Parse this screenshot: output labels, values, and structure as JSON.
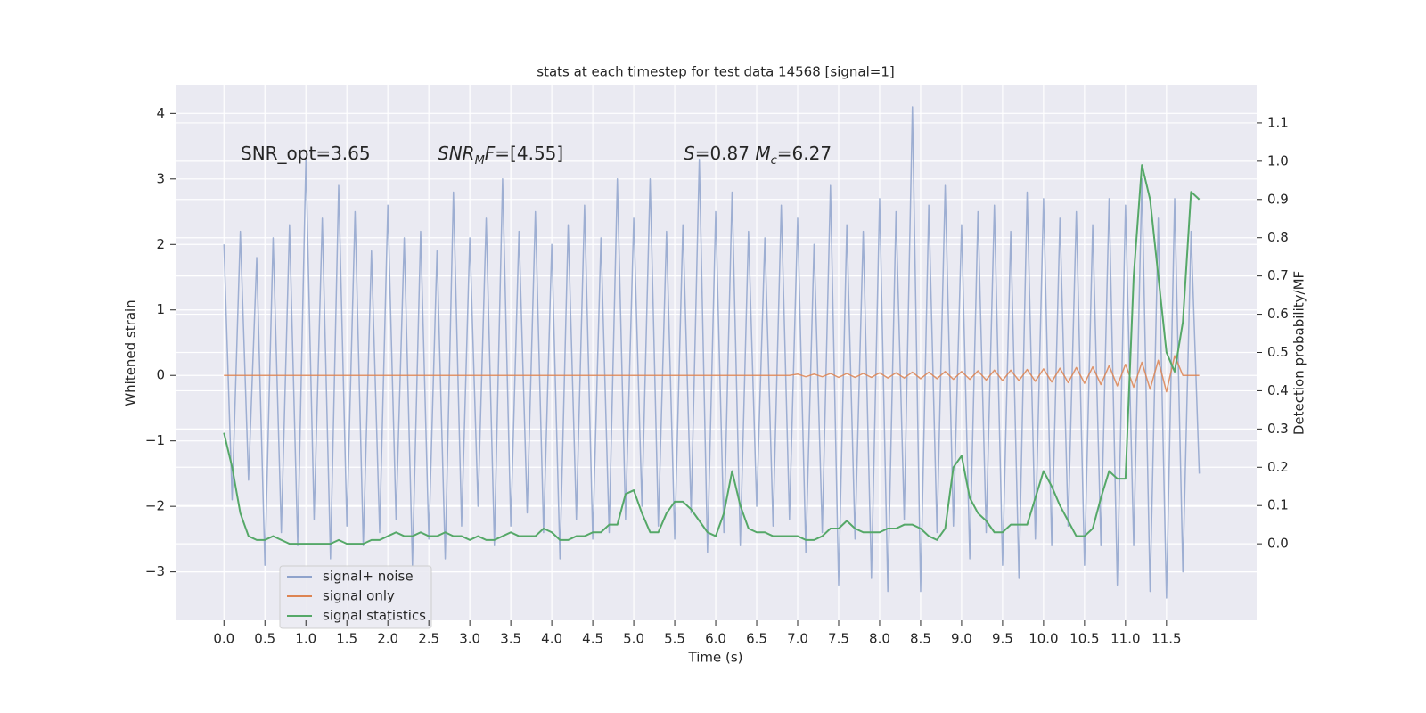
{
  "chart_data": {
    "type": "line",
    "title": "stats at each timestep for test data 14568 [signal=1]",
    "x_label": "Time (s)",
    "y_label": "Whitened strain",
    "y2_label": "Detection probability/MF",
    "annotations": [
      [
        {
          "text": "SNR_opt=3.65"
        }
      ],
      [
        {
          "text": "SNR",
          "italic": true
        },
        {
          "text": "M",
          "italic": true,
          "sub": true
        },
        {
          "text": "F",
          "italic": true
        },
        {
          "text": "=[4.55]"
        }
      ],
      [
        {
          "text": "S",
          "italic": true
        },
        {
          "text": "=0.87   "
        },
        {
          "text": "M",
          "italic": true
        },
        {
          "text": "c",
          "italic": true,
          "sub": true
        },
        {
          "text": "=6.27"
        }
      ]
    ],
    "x": [
      0.0,
      0.1,
      0.2,
      0.3,
      0.4,
      0.5,
      0.6,
      0.7,
      0.8,
      0.9,
      1.0,
      1.1,
      1.2,
      1.3,
      1.4,
      1.5,
      1.6,
      1.7,
      1.8,
      1.9,
      2.0,
      2.1,
      2.2,
      2.3,
      2.4,
      2.5,
      2.6,
      2.7,
      2.8,
      2.9,
      3.0,
      3.1,
      3.2,
      3.3,
      3.4,
      3.5,
      3.6,
      3.7,
      3.8,
      3.9,
      4.0,
      4.1,
      4.2,
      4.3,
      4.4,
      4.5,
      4.6,
      4.7,
      4.8,
      4.9,
      5.0,
      5.1,
      5.2,
      5.3,
      5.4,
      5.5,
      5.6,
      5.7,
      5.8,
      5.9,
      6.0,
      6.1,
      6.2,
      6.3,
      6.4,
      6.5,
      6.6,
      6.7,
      6.8,
      6.9,
      7.0,
      7.1,
      7.2,
      7.3,
      7.4,
      7.5,
      7.6,
      7.7,
      7.8,
      7.9,
      8.0,
      8.1,
      8.2,
      8.3,
      8.4,
      8.5,
      8.6,
      8.7,
      8.8,
      8.9,
      9.0,
      9.1,
      9.2,
      9.3,
      9.4,
      9.5,
      9.6,
      9.7,
      9.8,
      9.9,
      10.0,
      10.1,
      10.2,
      10.3,
      10.4,
      10.5,
      10.6,
      10.7,
      10.8,
      10.9,
      11.0,
      11.1,
      11.2,
      11.3,
      11.4,
      11.5,
      11.6,
      11.7,
      11.8,
      11.9
    ],
    "series": [
      {
        "name": "signal+ noise",
        "color": "#8fa3cc",
        "values": [
          2.0,
          -1.9,
          2.2,
          -1.6,
          1.8,
          -2.9,
          2.1,
          -2.4,
          2.3,
          -2.6,
          3.3,
          -2.2,
          2.4,
          -2.8,
          2.9,
          -2.3,
          2.5,
          -2.6,
          1.9,
          -2.4,
          2.6,
          -2.2,
          2.1,
          -2.9,
          2.2,
          -2.5,
          1.9,
          -2.8,
          2.8,
          -2.3,
          2.1,
          -2.0,
          2.4,
          -2.6,
          3.0,
          -2.3,
          2.2,
          -2.1,
          2.5,
          -2.4,
          2.0,
          -2.8,
          2.3,
          -2.2,
          2.6,
          -2.5,
          2.1,
          -2.4,
          3.0,
          -2.2,
          2.4,
          -2.0,
          3.0,
          -2.3,
          2.2,
          -2.5,
          2.3,
          -2.1,
          3.3,
          -2.7,
          2.5,
          -2.4,
          2.8,
          -2.6,
          2.2,
          -2.0,
          2.1,
          -2.3,
          2.6,
          -2.2,
          2.4,
          -2.7,
          2.0,
          -2.4,
          2.9,
          -3.2,
          2.3,
          -2.5,
          2.2,
          -3.1,
          2.7,
          -3.3,
          2.5,
          -2.2,
          4.1,
          -3.3,
          2.6,
          -2.4,
          2.9,
          -2.3,
          2.3,
          -2.8,
          2.5,
          -2.4,
          2.6,
          -2.9,
          2.2,
          -3.1,
          2.8,
          -2.5,
          2.7,
          -2.6,
          2.4,
          -2.3,
          2.5,
          -2.9,
          2.3,
          -2.6,
          2.7,
          -3.2,
          2.6,
          -2.6,
          3.0,
          -3.3,
          2.4,
          -3.4,
          2.7,
          -3.0,
          2.2,
          -1.5
        ]
      },
      {
        "name": "signal only",
        "color": "#dd8452",
        "values": [
          0,
          0,
          0,
          0,
          0,
          0,
          0,
          0,
          0,
          0,
          0,
          0,
          0,
          0,
          0,
          0,
          0,
          0,
          0,
          0,
          0,
          0,
          0,
          0,
          0,
          0,
          0,
          0,
          0,
          0,
          0,
          0,
          0,
          0,
          0,
          0,
          0,
          0,
          0,
          0,
          0,
          0,
          0,
          0,
          0,
          0,
          0,
          0,
          0,
          0,
          0,
          0,
          0,
          0,
          0,
          0,
          0,
          0,
          0,
          0,
          0,
          0,
          0,
          0,
          0,
          0,
          0,
          0,
          0,
          0,
          0.02,
          -0.02,
          0.02,
          -0.02,
          0.03,
          -0.03,
          0.03,
          -0.03,
          0.03,
          -0.03,
          0.04,
          -0.04,
          0.04,
          -0.04,
          0.05,
          -0.05,
          0.05,
          -0.05,
          0.06,
          -0.06,
          0.06,
          -0.06,
          0.07,
          -0.07,
          0.08,
          -0.08,
          0.08,
          -0.08,
          0.09,
          -0.09,
          0.1,
          -0.1,
          0.11,
          -0.11,
          0.12,
          -0.12,
          0.13,
          -0.14,
          0.15,
          -0.16,
          0.17,
          -0.18,
          0.2,
          -0.21,
          0.23,
          -0.25,
          0.3,
          0,
          0,
          0
        ]
      },
      {
        "name": "signal statistics",
        "color": "#55a868",
        "axis": "y2",
        "values": [
          0.29,
          0.2,
          0.08,
          0.02,
          0.01,
          0.01,
          0.02,
          0.01,
          0.0,
          0.0,
          0.0,
          0.0,
          0.0,
          0.0,
          0.01,
          0.0,
          0.0,
          0.0,
          0.01,
          0.01,
          0.02,
          0.03,
          0.02,
          0.02,
          0.03,
          0.02,
          0.02,
          0.03,
          0.02,
          0.02,
          0.01,
          0.02,
          0.01,
          0.01,
          0.02,
          0.03,
          0.02,
          0.02,
          0.02,
          0.04,
          0.03,
          0.01,
          0.01,
          0.02,
          0.02,
          0.03,
          0.03,
          0.05,
          0.05,
          0.13,
          0.14,
          0.08,
          0.03,
          0.03,
          0.08,
          0.11,
          0.11,
          0.09,
          0.06,
          0.03,
          0.02,
          0.08,
          0.19,
          0.1,
          0.04,
          0.03,
          0.03,
          0.02,
          0.02,
          0.02,
          0.02,
          0.01,
          0.01,
          0.02,
          0.04,
          0.04,
          0.06,
          0.04,
          0.03,
          0.03,
          0.03,
          0.04,
          0.04,
          0.05,
          0.05,
          0.04,
          0.02,
          0.01,
          0.04,
          0.2,
          0.23,
          0.12,
          0.08,
          0.06,
          0.03,
          0.03,
          0.05,
          0.05,
          0.05,
          0.12,
          0.19,
          0.15,
          0.1,
          0.06,
          0.02,
          0.02,
          0.04,
          0.12,
          0.19,
          0.17,
          0.17,
          0.7,
          0.99,
          0.9,
          0.7,
          0.5,
          0.45,
          0.58,
          0.92,
          0.9
        ]
      }
    ],
    "xlim": [
      -0.59,
      12.6
    ],
    "ylim": [
      -3.74,
      4.44
    ],
    "y2lim": [
      -0.2,
      1.2
    ],
    "xticks": [
      {
        "value": 0,
        "label": "0.0"
      },
      {
        "value": 0.5,
        "label": "0.5"
      },
      {
        "value": 1,
        "label": "1.0"
      },
      {
        "value": 1.5,
        "label": "1.5"
      },
      {
        "value": 2,
        "label": "2.0"
      },
      {
        "value": 2.5,
        "label": "2.5"
      },
      {
        "value": 3,
        "label": "3.0"
      },
      {
        "value": 3.5,
        "label": "3.5"
      },
      {
        "value": 4,
        "label": "4.0"
      },
      {
        "value": 4.5,
        "label": "4.5"
      },
      {
        "value": 5,
        "label": "5.0"
      },
      {
        "value": 5.5,
        "label": "5.5"
      },
      {
        "value": 6,
        "label": "6.0"
      },
      {
        "value": 6.5,
        "label": "6.5"
      },
      {
        "value": 7,
        "label": "7.0"
      },
      {
        "value": 7.5,
        "label": "7.5"
      },
      {
        "value": 8,
        "label": "8.0"
      },
      {
        "value": 8.5,
        "label": "8.5"
      },
      {
        "value": 9,
        "label": "9.0"
      },
      {
        "value": 9.5,
        "label": "9.5"
      },
      {
        "value": 10,
        "label": "10.0"
      },
      {
        "value": 10.5,
        "label": "10.5"
      },
      {
        "value": 11,
        "label": "11.0"
      },
      {
        "value": 11.5,
        "label": "11.5"
      }
    ],
    "yticks": [
      {
        "value": -3,
        "label": "−3"
      },
      {
        "value": -2,
        "label": "−2"
      },
      {
        "value": -1,
        "label": "−1"
      },
      0,
      1,
      2,
      3,
      4
    ],
    "y2ticks": [
      {
        "value": 0,
        "label": "0.0"
      },
      {
        "value": 0.1,
        "label": "0.1"
      },
      {
        "value": 0.2,
        "label": "0.2"
      },
      {
        "value": 0.3,
        "label": "0.3"
      },
      {
        "value": 0.4,
        "label": "0.4"
      },
      {
        "value": 0.5,
        "label": "0.5"
      },
      {
        "value": 0.6,
        "label": "0.6"
      },
      {
        "value": 0.7,
        "label": "0.7"
      },
      {
        "value": 0.8,
        "label": "0.8"
      },
      {
        "value": 0.9,
        "label": "0.9"
      },
      {
        "value": 1,
        "label": "1.0"
      },
      {
        "value": 1.1,
        "label": "1.1"
      }
    ],
    "grid": true,
    "legend": "lower left"
  }
}
